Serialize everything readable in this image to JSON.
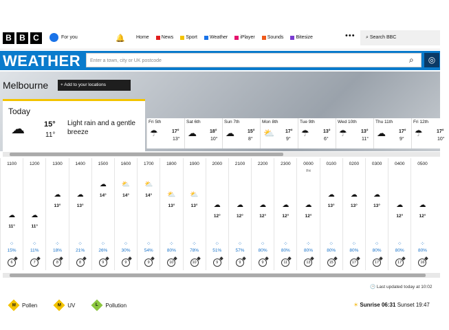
{
  "header": {
    "logo": [
      "B",
      "B",
      "C"
    ],
    "account": "For you",
    "nav": [
      {
        "label": "Home",
        "color": "#ffffff"
      },
      {
        "label": "News",
        "color": "#e11d1d"
      },
      {
        "label": "Sport",
        "color": "#f3c300"
      },
      {
        "label": "Weather",
        "color": "#1a73e8"
      },
      {
        "label": "iPlayer",
        "color": "#e5126d"
      },
      {
        "label": "Sounds",
        "color": "#f05a1a"
      },
      {
        "label": "Bitesize",
        "color": "#7a3bd1"
      }
    ],
    "more": "•••",
    "search_label": "Search BBC"
  },
  "weather_bar": {
    "title": "WEATHER",
    "search_placeholder": "Enter a town, city or UK postcode"
  },
  "location": {
    "city": "Melbourne",
    "add_label": "Add to your locations"
  },
  "today": {
    "label": "Today",
    "icon": "light-rain-icon",
    "high": "15°",
    "low": "11°",
    "description": "Light rain and a gentle breeze"
  },
  "days": [
    {
      "name": "Fri 5th",
      "icon": "rain-icon",
      "high": "17°",
      "low": "13°"
    },
    {
      "name": "Sat 6th",
      "icon": "cloud-icon",
      "high": "18°",
      "low": "10°"
    },
    {
      "name": "Sun 7th",
      "icon": "drizzle-icon",
      "high": "15°",
      "low": "8°"
    },
    {
      "name": "Mon 8th",
      "icon": "sun-cloud-icon",
      "high": "17°",
      "low": "9°"
    },
    {
      "name": "Tue 9th",
      "icon": "rain-icon",
      "high": "13°",
      "low": "6°"
    },
    {
      "name": "Wed 10th",
      "icon": "rain-icon",
      "high": "13°",
      "low": "11°"
    },
    {
      "name": "Thu 11th",
      "icon": "cloud-icon",
      "high": "17°",
      "low": "9°"
    },
    {
      "name": "Fri 12th",
      "icon": "rain-icon",
      "high": "17°",
      "low": "10°"
    }
  ],
  "hourly": [
    {
      "time": "1100",
      "day": "",
      "icon": "☁",
      "temp": "11°",
      "prec": "15%",
      "wind": "6"
    },
    {
      "time": "1200",
      "day": "",
      "icon": "☁",
      "temp": "11°",
      "prec": "11%",
      "wind": "7"
    },
    {
      "time": "1300",
      "day": "",
      "icon": "☁",
      "temp": "13°",
      "prec": "18%",
      "wind": "8"
    },
    {
      "time": "1400",
      "day": "",
      "icon": "☁",
      "temp": "13°",
      "prec": "21%",
      "wind": "8"
    },
    {
      "time": "1500",
      "day": "",
      "icon": "☁",
      "temp": "14°",
      "prec": "26%",
      "wind": "9"
    },
    {
      "time": "1600",
      "day": "",
      "icon": "⛅",
      "temp": "14°",
      "prec": "30%",
      "wind": "9"
    },
    {
      "time": "1700",
      "day": "",
      "icon": "⛅",
      "temp": "14°",
      "prec": "54%",
      "wind": "9"
    },
    {
      "time": "1800",
      "day": "",
      "icon": "⛅",
      "temp": "13°",
      "prec": "80%",
      "wind": "10"
    },
    {
      "time": "1900",
      "day": "",
      "icon": "⛅",
      "temp": "13°",
      "prec": "78%",
      "wind": "10"
    },
    {
      "time": "2000",
      "day": "",
      "icon": "☁",
      "temp": "12°",
      "prec": "51%",
      "wind": "9"
    },
    {
      "time": "2100",
      "day": "",
      "icon": "☁",
      "temp": "12°",
      "prec": "57%",
      "wind": "9"
    },
    {
      "time": "2200",
      "day": "",
      "icon": "☁",
      "temp": "12°",
      "prec": "80%",
      "wind": "9"
    },
    {
      "time": "2300",
      "day": "",
      "icon": "☁",
      "temp": "12°",
      "prec": "80%",
      "wind": "11"
    },
    {
      "time": "0000",
      "day": "Fri",
      "icon": "☁",
      "temp": "12°",
      "prec": "80%",
      "wind": "13"
    },
    {
      "time": "0100",
      "day": "",
      "icon": "☁",
      "temp": "13°",
      "prec": "80%",
      "wind": "15"
    },
    {
      "time": "0200",
      "day": "",
      "icon": "☁",
      "temp": "13°",
      "prec": "80%",
      "wind": "17"
    },
    {
      "time": "0300",
      "day": "",
      "icon": "☁",
      "temp": "13°",
      "prec": "80%",
      "wind": "17"
    },
    {
      "time": "0400",
      "day": "",
      "icon": "☁",
      "temp": "12°",
      "prec": "80%",
      "wind": "17"
    },
    {
      "time": "0500",
      "day": "",
      "icon": "☁",
      "temp": "12°",
      "prec": "80%",
      "wind": "16"
    }
  ],
  "last_updated": "Last updated today at 10:02",
  "indices": [
    {
      "name": "Pollen",
      "level": "M",
      "color": "#f3c300"
    },
    {
      "name": "UV",
      "level": "M",
      "color": "#f3c300"
    },
    {
      "name": "Pollution",
      "level": "L",
      "color": "#8cc63f"
    }
  ],
  "sun": {
    "sunrise_label": "Sunrise",
    "sunrise": "06:31",
    "sunset_label": "Sunset",
    "sunset": "19:47"
  }
}
